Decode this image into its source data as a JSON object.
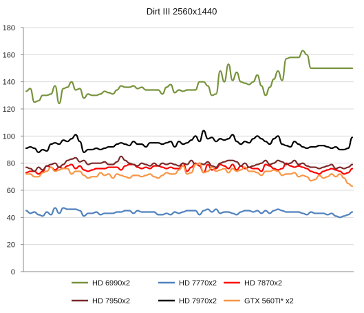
{
  "chart_data": {
    "type": "line",
    "title": "Dirt III 2560x1440",
    "xlabel": "",
    "ylabel": "",
    "ylim": [
      0,
      180
    ],
    "yticks": [
      0,
      20,
      40,
      60,
      80,
      100,
      120,
      140,
      160,
      180
    ],
    "grid": true,
    "legend_position": "bottom",
    "x": [
      1,
      2,
      3,
      4,
      5,
      6,
      7,
      8,
      9,
      10,
      11,
      12,
      13,
      14,
      15,
      16,
      17,
      18,
      19,
      20,
      21,
      22,
      23,
      24,
      25,
      26,
      27,
      28,
      29,
      30,
      31,
      32,
      33,
      34,
      35,
      36,
      37,
      38,
      39,
      40,
      41,
      42,
      43,
      44,
      45,
      46,
      47,
      48,
      49,
      50,
      51,
      52,
      53,
      54,
      55,
      56,
      57,
      58,
      59,
      60,
      61,
      62,
      63,
      64,
      65,
      66,
      67,
      68,
      69,
      70,
      71,
      72,
      73,
      74,
      75,
      76,
      77,
      78,
      79,
      80
    ],
    "series": [
      {
        "name": "HD 6990x2",
        "color": "#77933c",
        "values": [
          133,
          135,
          125,
          126,
          130,
          130,
          131,
          137,
          124,
          135,
          136,
          140,
          134,
          135,
          128,
          131,
          130,
          130,
          131,
          133,
          132,
          131,
          134,
          137,
          136,
          136,
          137,
          135,
          136,
          134,
          134,
          134,
          134,
          131,
          136,
          138,
          132,
          134,
          133,
          134,
          134,
          134,
          140,
          140,
          137,
          130,
          131,
          148,
          140,
          153,
          141,
          147,
          140,
          139,
          138,
          140,
          145,
          137,
          130,
          136,
          142,
          148,
          141,
          157,
          158,
          158,
          158,
          163,
          160,
          150,
          150,
          150,
          150,
          150,
          150,
          150,
          150,
          150,
          150,
          150
        ]
      },
      {
        "name": "HD 7770x2",
        "color": "#4f81bd",
        "values": [
          45,
          43,
          44,
          42,
          41,
          44,
          42,
          47,
          43,
          47,
          46,
          46,
          46,
          45,
          41,
          43,
          43,
          44,
          42,
          43,
          43,
          43,
          44,
          44,
          45,
          45,
          43,
          45,
          44,
          44,
          44,
          44,
          42,
          42,
          43,
          42,
          44,
          43,
          44,
          45,
          45,
          45,
          42,
          45,
          46,
          44,
          46,
          43,
          44,
          44,
          43,
          42,
          44,
          45,
          45,
          44,
          45,
          43,
          45,
          43,
          45,
          46,
          45,
          44,
          44,
          44,
          44,
          43,
          42,
          44,
          43,
          43,
          43,
          42,
          43,
          41,
          40,
          41,
          42,
          44
        ]
      },
      {
        "name": "HD 7870x2",
        "color": "#ff0000",
        "values": [
          73,
          74,
          74,
          72,
          74,
          78,
          77,
          75,
          77,
          76,
          78,
          79,
          76,
          78,
          75,
          74,
          75,
          76,
          76,
          76,
          77,
          77,
          77,
          75,
          78,
          79,
          79,
          77,
          76,
          77,
          76,
          78,
          78,
          77,
          76,
          77,
          76,
          76,
          80,
          74,
          77,
          80,
          78,
          73,
          79,
          75,
          76,
          79,
          78,
          76,
          79,
          75,
          78,
          76,
          77,
          76,
          76,
          74,
          79,
          78,
          76,
          75,
          76,
          80,
          78,
          77,
          78,
          77,
          76,
          74,
          73,
          72,
          74,
          75,
          76,
          75,
          74,
          72,
          73,
          76
        ]
      },
      {
        "name": "HD 7950x2",
        "color": "#7b2a2a",
        "values": [
          77,
          76,
          74,
          77,
          75,
          78,
          79,
          80,
          77,
          79,
          82,
          83,
          84,
          81,
          82,
          79,
          80,
          80,
          80,
          81,
          79,
          79,
          81,
          85,
          82,
          80,
          79,
          78,
          80,
          79,
          78,
          80,
          78,
          80,
          79,
          80,
          79,
          78,
          80,
          79,
          82,
          79,
          80,
          79,
          81,
          78,
          77,
          80,
          81,
          82,
          82,
          81,
          78,
          80,
          77,
          78,
          79,
          80,
          82,
          79,
          80,
          82,
          81,
          79,
          80,
          82,
          79,
          80,
          78,
          77,
          77,
          76,
          77,
          78,
          79,
          76,
          77,
          76,
          77,
          79
        ]
      },
      {
        "name": "HD 7970x2",
        "color": "#000000",
        "values": [
          91,
          92,
          91,
          88,
          90,
          89,
          94,
          95,
          94,
          97,
          96,
          98,
          101,
          96,
          88,
          90,
          90,
          91,
          90,
          91,
          92,
          92,
          94,
          95,
          94,
          93,
          96,
          94,
          94,
          92,
          95,
          95,
          95,
          94,
          95,
          96,
          92,
          96,
          94,
          95,
          97,
          100,
          96,
          104,
          98,
          99,
          96,
          98,
          97,
          98,
          101,
          96,
          94,
          96,
          95,
          98,
          100,
          98,
          96,
          94,
          98,
          100,
          94,
          93,
          92,
          96,
          94,
          92,
          91,
          92,
          92,
          93,
          93,
          92,
          91,
          92,
          90,
          90,
          91,
          99
        ]
      },
      {
        "name": "GTX 560Ti* x2",
        "color": "#f79646",
        "values": [
          72,
          72,
          70,
          70,
          73,
          74,
          77,
          74,
          75,
          76,
          76,
          72,
          74,
          74,
          71,
          69,
          70,
          70,
          73,
          71,
          72,
          69,
          72,
          71,
          70,
          69,
          71,
          71,
          70,
          71,
          72,
          70,
          69,
          71,
          73,
          72,
          72,
          75,
          78,
          72,
          73,
          79,
          80,
          73,
          74,
          77,
          74,
          75,
          76,
          73,
          76,
          74,
          75,
          77,
          74,
          74,
          73,
          71,
          74,
          74,
          75,
          74,
          71,
          72,
          72,
          73,
          70,
          71,
          70,
          67,
          68,
          71,
          69,
          70,
          72,
          70,
          72,
          69,
          65,
          63
        ]
      }
    ]
  }
}
